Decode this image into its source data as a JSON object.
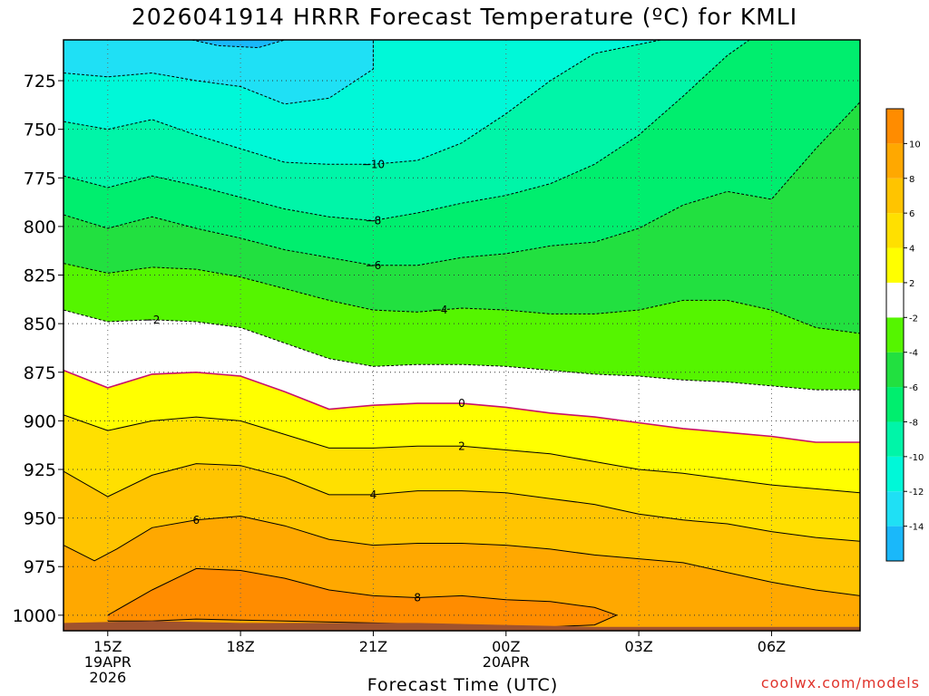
{
  "title": "2026041914 HRRR Forecast Temperature (ºC) for KMLI",
  "credit": "coolwx.com/models",
  "chart_data": {
    "type": "contour",
    "title": "2026041914 HRRR Forecast Temperature (ºC) for KMLI",
    "xlabel": "Forecast Time (UTC)",
    "ylabel": "",
    "y_axis": {
      "unit": "hPa",
      "ticks": [
        725,
        750,
        775,
        800,
        825,
        850,
        875,
        900,
        925,
        950,
        975,
        1000
      ],
      "range": [
        704,
        1008
      ],
      "inverted": true
    },
    "x_axis": {
      "range_hours": [
        14,
        32
      ],
      "ticks": [
        {
          "hour": 15,
          "lines": [
            "15Z",
            "19APR",
            "2026"
          ]
        },
        {
          "hour": 18,
          "lines": [
            "18Z"
          ]
        },
        {
          "hour": 21,
          "lines": [
            "21Z"
          ]
        },
        {
          "hour": 24,
          "lines": [
            "00Z",
            "20APR"
          ]
        },
        {
          "hour": 27,
          "lines": [
            "03Z"
          ]
        },
        {
          "hour": 30,
          "lines": [
            "06Z"
          ]
        }
      ]
    },
    "grid": true,
    "colorbar": {
      "placement": "right",
      "bins": [
        {
          "label": "",
          "color": "#1ab8fa"
        },
        {
          "label": "-14",
          "color": "#1fe0f5"
        },
        {
          "label": "-12",
          "color": "#00f8d8"
        },
        {
          "label": "-10",
          "color": "#00f5a8"
        },
        {
          "label": "-8",
          "color": "#00ee6e"
        },
        {
          "label": "-6",
          "color": "#22e040"
        },
        {
          "label": "-4",
          "color": "#55f500"
        },
        {
          "label": "-2",
          "color": "#ffffff"
        },
        {
          "label": "2",
          "color": "#ffff00"
        },
        {
          "label": "4",
          "color": "#ffe000"
        },
        {
          "label": "6",
          "color": "#ffc400"
        },
        {
          "label": "8",
          "color": "#ffa800"
        },
        {
          "label": "10",
          "color": "#ff8c00"
        }
      ]
    },
    "ground_color": "#a0522d",
    "zero_line_color": "#c8106a",
    "contour_levels": [
      -14,
      -12,
      -10,
      -8,
      -6,
      -4,
      -2,
      0,
      2,
      4,
      6,
      8
    ],
    "contours": [
      {
        "level": -14,
        "label": "",
        "points": [
          [
            16.9,
            704
          ],
          [
            17.5,
            707
          ],
          [
            18.4,
            708
          ],
          [
            19.0,
            704
          ]
        ]
      },
      {
        "level": -12,
        "label": "",
        "points": [
          [
            14,
            721
          ],
          [
            15,
            723
          ],
          [
            16,
            721
          ],
          [
            17,
            725
          ],
          [
            18,
            728
          ],
          [
            19,
            737
          ],
          [
            20,
            734
          ],
          [
            21,
            719
          ],
          [
            21,
            704
          ]
        ]
      },
      {
        "level": -10,
        "label": "-10",
        "points": [
          [
            14,
            746
          ],
          [
            15,
            750
          ],
          [
            16,
            745
          ],
          [
            17,
            753
          ],
          [
            18,
            760
          ],
          [
            19,
            767
          ],
          [
            20,
            768
          ],
          [
            21,
            768
          ],
          [
            22,
            766
          ],
          [
            23,
            757
          ],
          [
            24,
            742
          ],
          [
            25,
            725
          ],
          [
            26,
            711
          ],
          [
            27.5,
            704
          ]
        ]
      },
      {
        "level": -8,
        "label": "-8",
        "points": [
          [
            14,
            774
          ],
          [
            15,
            780
          ],
          [
            16,
            774
          ],
          [
            17,
            779
          ],
          [
            18,
            785
          ],
          [
            19,
            791
          ],
          [
            20,
            795
          ],
          [
            21,
            797
          ],
          [
            22,
            793
          ],
          [
            23,
            788
          ],
          [
            24,
            784
          ],
          [
            25,
            778
          ],
          [
            26,
            768
          ],
          [
            27,
            753
          ],
          [
            28,
            733
          ],
          [
            29,
            712
          ],
          [
            29.5,
            704
          ]
        ]
      },
      {
        "level": -6,
        "label": "-6",
        "points": [
          [
            14,
            794
          ],
          [
            15,
            801
          ],
          [
            16,
            795
          ],
          [
            17,
            801
          ],
          [
            18,
            806
          ],
          [
            19,
            812
          ],
          [
            20,
            816
          ],
          [
            21,
            820
          ],
          [
            22,
            820
          ],
          [
            23,
            816
          ],
          [
            24,
            814
          ],
          [
            25,
            810
          ],
          [
            26,
            808
          ],
          [
            27,
            801
          ],
          [
            28,
            789
          ],
          [
            29,
            782
          ],
          [
            30,
            786
          ],
          [
            31,
            760
          ],
          [
            32,
            736
          ]
        ]
      },
      {
        "level": -4,
        "label": "-4",
        "points": [
          [
            14,
            819
          ],
          [
            15,
            824
          ],
          [
            16,
            821
          ],
          [
            17,
            822
          ],
          [
            18,
            826
          ],
          [
            19,
            832
          ],
          [
            20,
            838
          ],
          [
            21,
            843
          ],
          [
            22,
            844
          ],
          [
            23,
            842
          ],
          [
            24,
            843
          ],
          [
            25,
            845
          ],
          [
            26,
            845
          ],
          [
            27,
            843
          ],
          [
            28,
            838
          ],
          [
            29,
            838
          ],
          [
            30,
            843
          ],
          [
            31,
            852
          ],
          [
            32,
            855
          ]
        ]
      },
      {
        "level": -2,
        "label": "-2",
        "points": [
          [
            14,
            843
          ],
          [
            15,
            849
          ],
          [
            16,
            848
          ],
          [
            17,
            849
          ],
          [
            18,
            852
          ],
          [
            19,
            860
          ],
          [
            20,
            868
          ],
          [
            21,
            872
          ],
          [
            22,
            871
          ],
          [
            23,
            871
          ],
          [
            24,
            872
          ],
          [
            25,
            874
          ],
          [
            26,
            876
          ],
          [
            27,
            877
          ],
          [
            28,
            879
          ],
          [
            29,
            880
          ],
          [
            30,
            882
          ],
          [
            31,
            884
          ],
          [
            32,
            884
          ]
        ]
      },
      {
        "level": 0,
        "label": "0",
        "points": [
          [
            14,
            874
          ],
          [
            15,
            883
          ],
          [
            16,
            876
          ],
          [
            17,
            875
          ],
          [
            18,
            877
          ],
          [
            19,
            885
          ],
          [
            20,
            894
          ],
          [
            21,
            892
          ],
          [
            22,
            891
          ],
          [
            23,
            891
          ],
          [
            24,
            893
          ],
          [
            25,
            896
          ],
          [
            26,
            898
          ],
          [
            27,
            901
          ],
          [
            28,
            904
          ],
          [
            29,
            906
          ],
          [
            30,
            908
          ],
          [
            31,
            911
          ],
          [
            32,
            911
          ]
        ]
      },
      {
        "level": 2,
        "label": "2",
        "points": [
          [
            14,
            897
          ],
          [
            15,
            905
          ],
          [
            16,
            900
          ],
          [
            17,
            898
          ],
          [
            18,
            900
          ],
          [
            19,
            907
          ],
          [
            20,
            914
          ],
          [
            21,
            914
          ],
          [
            22,
            913
          ],
          [
            23,
            913
          ],
          [
            24,
            915
          ],
          [
            25,
            917
          ],
          [
            26,
            921
          ],
          [
            27,
            925
          ],
          [
            28,
            927
          ],
          [
            29,
            930
          ],
          [
            30,
            933
          ],
          [
            31,
            935
          ],
          [
            32,
            937
          ]
        ]
      },
      {
        "level": 4,
        "label": "4",
        "points": [
          [
            14,
            926
          ],
          [
            15,
            939
          ],
          [
            16,
            928
          ],
          [
            17,
            922
          ],
          [
            18,
            923
          ],
          [
            19,
            929
          ],
          [
            20,
            938
          ],
          [
            21,
            938
          ],
          [
            22,
            936
          ],
          [
            23,
            936
          ],
          [
            24,
            937
          ],
          [
            25,
            940
          ],
          [
            26,
            943
          ],
          [
            27,
            948
          ],
          [
            28,
            951
          ],
          [
            29,
            953
          ],
          [
            30,
            957
          ],
          [
            31,
            960
          ],
          [
            32,
            962
          ]
        ]
      },
      {
        "level": 6,
        "label": "6",
        "points": [
          [
            14,
            964
          ],
          [
            14.7,
            972
          ],
          [
            15.2,
            966
          ],
          [
            16,
            955
          ],
          [
            17,
            951
          ],
          [
            18,
            949
          ],
          [
            19,
            954
          ],
          [
            20,
            961
          ],
          [
            21,
            964
          ],
          [
            22,
            963
          ],
          [
            23,
            963
          ],
          [
            24,
            964
          ],
          [
            25,
            966
          ],
          [
            26,
            969
          ],
          [
            27,
            971
          ],
          [
            28,
            973
          ],
          [
            29,
            978
          ],
          [
            30,
            983
          ],
          [
            31,
            987
          ],
          [
            32,
            990
          ]
        ]
      },
      {
        "level": 8,
        "label": "8",
        "points": [
          [
            15,
            1000
          ],
          [
            16,
            987
          ],
          [
            17,
            976
          ],
          [
            18,
            977
          ],
          [
            19,
            981
          ],
          [
            20,
            987
          ],
          [
            21,
            990
          ],
          [
            22,
            991
          ],
          [
            23,
            990
          ],
          [
            24,
            992
          ],
          [
            25,
            993
          ],
          [
            26,
            996
          ],
          [
            26.5,
            1000
          ],
          [
            26,
            1005
          ],
          [
            25,
            1006
          ],
          [
            23,
            1005
          ],
          [
            21,
            1004
          ],
          [
            19,
            1003
          ],
          [
            17,
            1002
          ],
          [
            16,
            1003
          ],
          [
            15,
            1003
          ]
        ]
      }
    ],
    "ground_profile": [
      [
        14,
        1004
      ],
      [
        16,
        1003
      ],
      [
        18,
        1004
      ],
      [
        20,
        1004
      ],
      [
        22,
        1004
      ],
      [
        24,
        1005
      ],
      [
        26,
        1006
      ],
      [
        28,
        1006
      ],
      [
        30,
        1006
      ],
      [
        32,
        1006
      ]
    ]
  }
}
